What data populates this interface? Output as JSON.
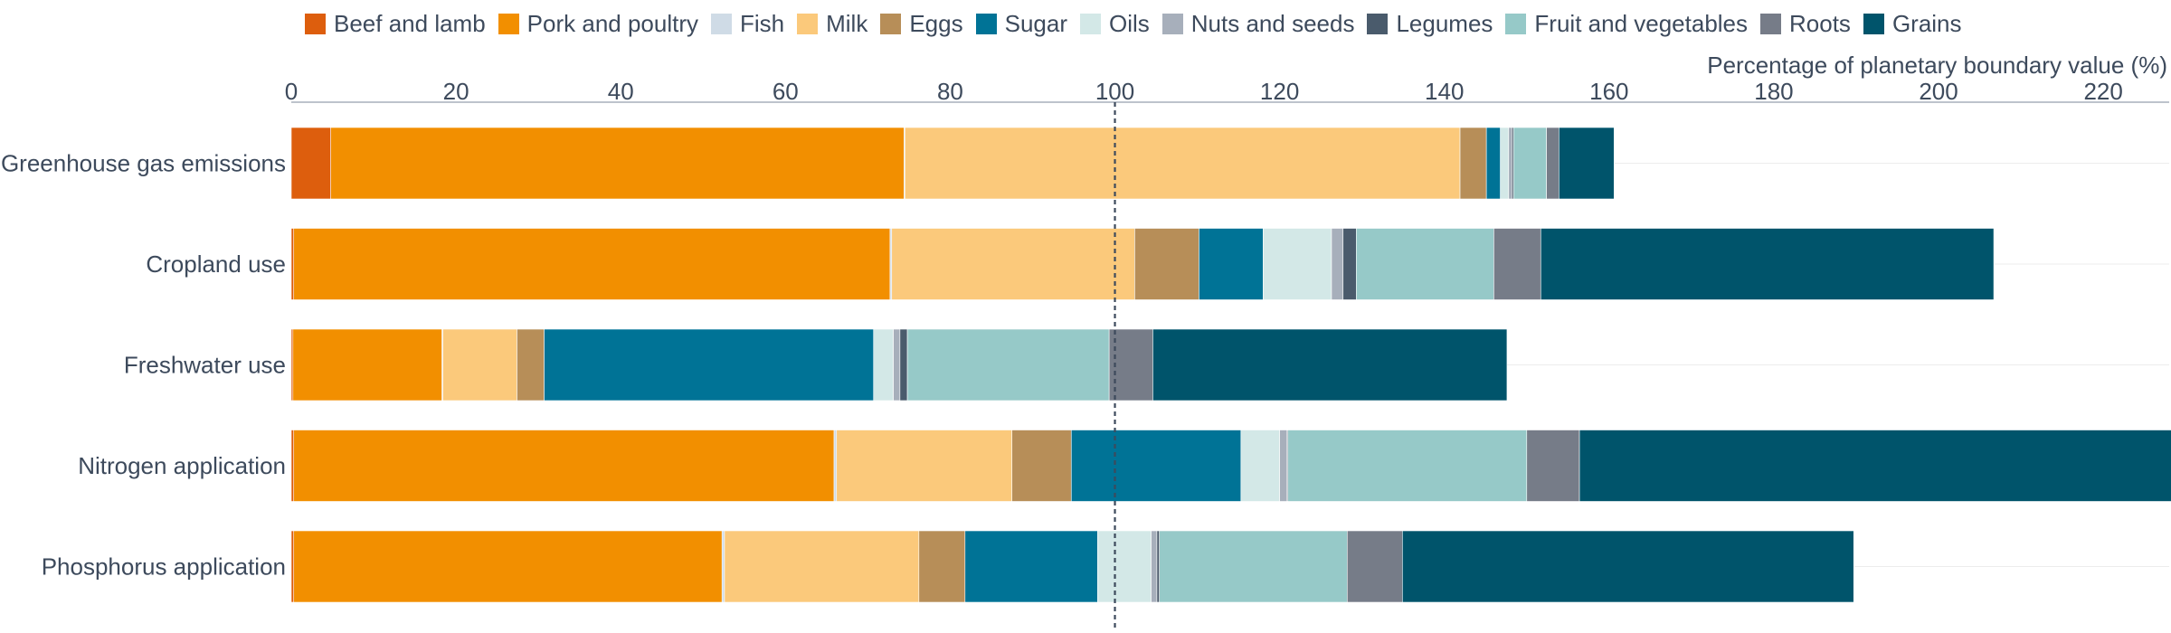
{
  "chart_data": {
    "type": "bar",
    "orientation": "horizontal",
    "stacked": true,
    "xlabel": "Percentage of planetary boundary value (%)",
    "xlim": [
      0,
      228
    ],
    "xticks": [
      0,
      20,
      40,
      60,
      80,
      100,
      120,
      140,
      160,
      180,
      200,
      220
    ],
    "reference_line": 100,
    "legend_position": "top",
    "grid": true,
    "categories": [
      "Greenhouse gas emissions",
      "Cropland use",
      "Freshwater use",
      "Nitrogen application",
      "Phosphorus application"
    ],
    "series": [
      {
        "name": "Beef and lamb",
        "color": "#dd5e0d",
        "values": [
          4.8,
          0.3,
          0.2,
          0.3,
          0.3
        ]
      },
      {
        "name": "Pork and poultry",
        "color": "#f28f00",
        "values": [
          69.6,
          72.4,
          18.1,
          65.6,
          52.0
        ]
      },
      {
        "name": "Fish",
        "color": "#cfdbe6",
        "values": [
          0.1,
          0.2,
          0.1,
          0.3,
          0.3
        ]
      },
      {
        "name": "Milk",
        "color": "#fbc97b",
        "values": [
          67.4,
          29.5,
          9.0,
          21.3,
          23.6
        ]
      },
      {
        "name": "Eggs",
        "color": "#b78e58",
        "values": [
          3.2,
          7.8,
          3.3,
          7.2,
          5.6
        ]
      },
      {
        "name": "Sugar",
        "color": "#007396",
        "values": [
          1.7,
          7.8,
          40.0,
          20.6,
          16.1
        ]
      },
      {
        "name": "Oils",
        "color": "#d3e8e7",
        "values": [
          1.0,
          8.3,
          2.4,
          4.7,
          6.5
        ]
      },
      {
        "name": "Nuts and seeds",
        "color": "#a7afbb",
        "values": [
          0.4,
          1.4,
          0.8,
          0.9,
          0.7
        ]
      },
      {
        "name": "Legumes",
        "color": "#4a5b6c",
        "values": [
          0.2,
          1.6,
          0.9,
          0.1,
          0.3
        ]
      },
      {
        "name": "Fruit and vegetables",
        "color": "#96c9c8",
        "values": [
          4.0,
          16.7,
          24.5,
          29.0,
          22.8
        ]
      },
      {
        "name": "Roots",
        "color": "#767c88",
        "values": [
          1.5,
          5.7,
          5.3,
          6.4,
          6.7
        ]
      },
      {
        "name": "Grains",
        "color": "#00546b",
        "values": [
          6.7,
          55.0,
          43.0,
          71.9,
          54.8
        ]
      }
    ]
  }
}
